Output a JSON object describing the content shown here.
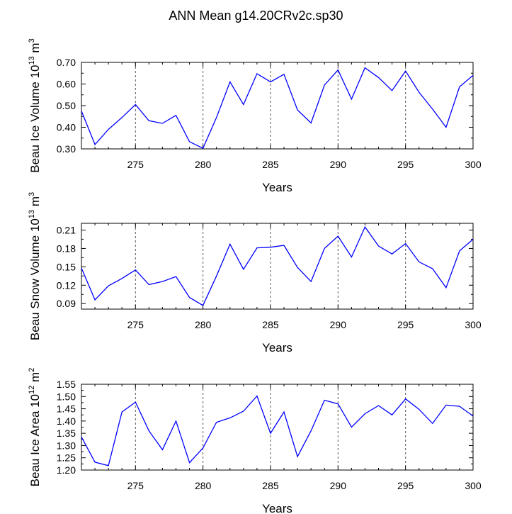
{
  "title": "ANN Mean g14.20CRv2c.sp30",
  "colors": {
    "line": "#0000ff",
    "axis": "#000000",
    "grid": "#555555"
  },
  "chart_data": [
    {
      "type": "line",
      "xlabel": "Years",
      "ylabel": "Beau Ice Volume 10",
      "ylabel_exp": "13",
      "ylabel_unit": " m",
      "ylabel_unit_exp": "3",
      "xlim": [
        271,
        300
      ],
      "ylim": [
        0.3,
        0.7
      ],
      "xticks": [
        275,
        280,
        285,
        290,
        295,
        300
      ],
      "xtick_labels": [
        "275",
        "280",
        "285",
        "290",
        "295",
        "300"
      ],
      "yticks": [
        0.3,
        0.4,
        0.5,
        0.6,
        0.7
      ],
      "ytick_labels": [
        "0.30",
        "0.40",
        "0.50",
        "0.60",
        "0.70"
      ],
      "grid_x": [
        275,
        280,
        285,
        290,
        295
      ],
      "x": [
        271,
        272,
        273,
        274,
        275,
        276,
        277,
        278,
        279,
        280,
        281,
        282,
        283,
        284,
        285,
        286,
        287,
        288,
        289,
        290,
        291,
        292,
        293,
        294,
        295,
        296,
        297,
        298,
        299,
        300
      ],
      "values": [
        0.475,
        0.32,
        0.39,
        0.445,
        0.505,
        0.43,
        0.418,
        0.455,
        0.333,
        0.303,
        0.445,
        0.61,
        0.505,
        0.648,
        0.61,
        0.645,
        0.48,
        0.42,
        0.595,
        0.665,
        0.53,
        0.675,
        0.63,
        0.57,
        0.66,
        0.562,
        0.484,
        0.4,
        0.587,
        0.64
      ]
    },
    {
      "type": "line",
      "xlabel": "Years",
      "ylabel": "Beau Snow Volume 10",
      "ylabel_exp": "13",
      "ylabel_unit": " m",
      "ylabel_unit_exp": "3",
      "xlim": [
        271,
        300
      ],
      "ylim": [
        0.081,
        0.221
      ],
      "xticks": [
        275,
        280,
        285,
        290,
        295,
        300
      ],
      "xtick_labels": [
        "275",
        "280",
        "285",
        "290",
        "295",
        "300"
      ],
      "yticks": [
        0.09,
        0.12,
        0.15,
        0.18,
        0.21
      ],
      "ytick_labels": [
        "0.09",
        "0.12",
        "0.15",
        "0.18",
        "0.21"
      ],
      "grid_x": [
        275,
        280,
        285,
        290,
        295
      ],
      "x": [
        271,
        272,
        273,
        274,
        275,
        276,
        277,
        278,
        279,
        280,
        281,
        282,
        283,
        284,
        285,
        286,
        287,
        288,
        289,
        290,
        291,
        292,
        293,
        294,
        295,
        296,
        297,
        298,
        299,
        300
      ],
      "values": [
        0.148,
        0.096,
        0.119,
        0.131,
        0.145,
        0.121,
        0.126,
        0.134,
        0.1,
        0.087,
        0.135,
        0.187,
        0.146,
        0.181,
        0.182,
        0.185,
        0.149,
        0.126,
        0.18,
        0.2,
        0.166,
        0.215,
        0.184,
        0.171,
        0.188,
        0.158,
        0.147,
        0.116,
        0.176,
        0.195
      ]
    },
    {
      "type": "line",
      "xlabel": "Years",
      "ylabel": "Beau Ice Area 10",
      "ylabel_exp": "12",
      "ylabel_unit": " m",
      "ylabel_unit_exp": "2",
      "xlim": [
        271,
        300
      ],
      "ylim": [
        1.2,
        1.55
      ],
      "xticks": [
        275,
        280,
        285,
        290,
        295,
        300
      ],
      "xtick_labels": [
        "275",
        "280",
        "285",
        "290",
        "295",
        "300"
      ],
      "yticks": [
        1.2,
        1.25,
        1.3,
        1.35,
        1.4,
        1.45,
        1.5,
        1.55
      ],
      "ytick_labels": [
        "1.20",
        "1.25",
        "1.30",
        "1.35",
        "1.40",
        "1.45",
        "1.50",
        "1.55"
      ],
      "grid_x": [
        275,
        280,
        285,
        290,
        295
      ],
      "x": [
        271,
        272,
        273,
        274,
        275,
        276,
        277,
        278,
        279,
        280,
        281,
        282,
        283,
        284,
        285,
        286,
        287,
        288,
        289,
        290,
        291,
        292,
        293,
        294,
        295,
        296,
        297,
        298,
        299,
        300
      ],
      "values": [
        1.335,
        1.232,
        1.218,
        1.437,
        1.477,
        1.36,
        1.283,
        1.4,
        1.23,
        1.29,
        1.395,
        1.413,
        1.44,
        1.502,
        1.35,
        1.437,
        1.255,
        1.36,
        1.485,
        1.47,
        1.375,
        1.43,
        1.463,
        1.425,
        1.49,
        1.448,
        1.39,
        1.465,
        1.46,
        1.42
      ]
    }
  ]
}
